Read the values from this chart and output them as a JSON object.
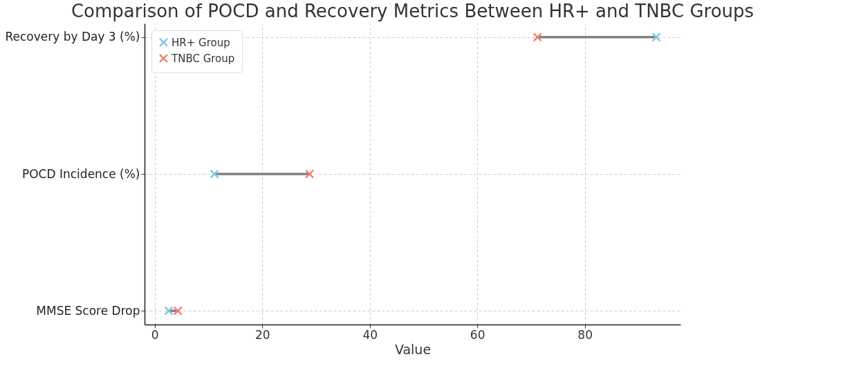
{
  "chart_data": {
    "type": "scatter",
    "orientation": "horizontal",
    "title": "Comparison of POCD and Recovery Metrics Between HR+ and TNBC Groups",
    "xlabel": "Value",
    "categories": [
      "Recovery by Day 3 (%)",
      "POCD Incidence (%)",
      "MMSE Score Drop"
    ],
    "series": [
      {
        "name": "HR+ Group",
        "color": "#7ec8e3",
        "values": [
          93.3,
          11.1,
          2.6
        ]
      },
      {
        "name": "TNBC Group",
        "color": "#f08070",
        "values": [
          71.2,
          28.8,
          4.3
        ]
      }
    ],
    "xlim": [
      -1.9,
      97.8
    ],
    "xticks": [
      0,
      20,
      40,
      60,
      80
    ],
    "grid": true,
    "legend": "top left",
    "marker": "cross"
  }
}
